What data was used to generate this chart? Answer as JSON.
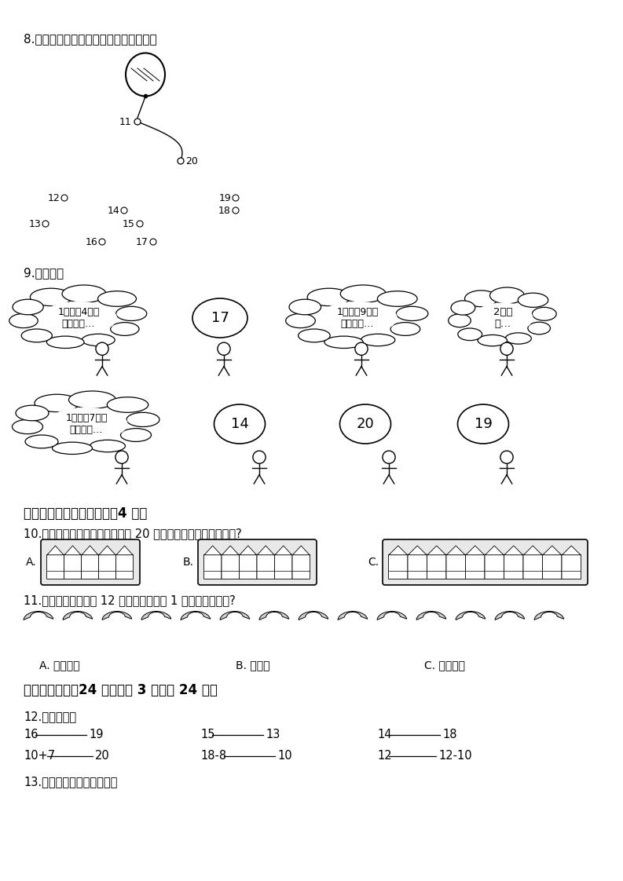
{
  "bg_color": "#ffffff",
  "q8_label": "8.按从小到大的顺序把下面各点连起来。",
  "q9_label": "9.打电话。",
  "q10_label": "10.小明有两盒一样的蜡笔，一共 20 支。下面哪一种是其中的盒?",
  "q11_label": "11.把下面的香蕉分给 12 个小朋友，每人 1 根，结果怎么样?",
  "q12_label": "12.比较大小。",
  "q13_label": "13.在横线上填上合适的数。",
  "section3_label": "三、请你选择合适的答案（4 分）",
  "section4_label": "四、我会做。（24 分）（共 3 题；共 24 分）",
  "q11_choices": [
    "A. 正好分完",
    "B. 不够分",
    "C. 还有剩余"
  ]
}
